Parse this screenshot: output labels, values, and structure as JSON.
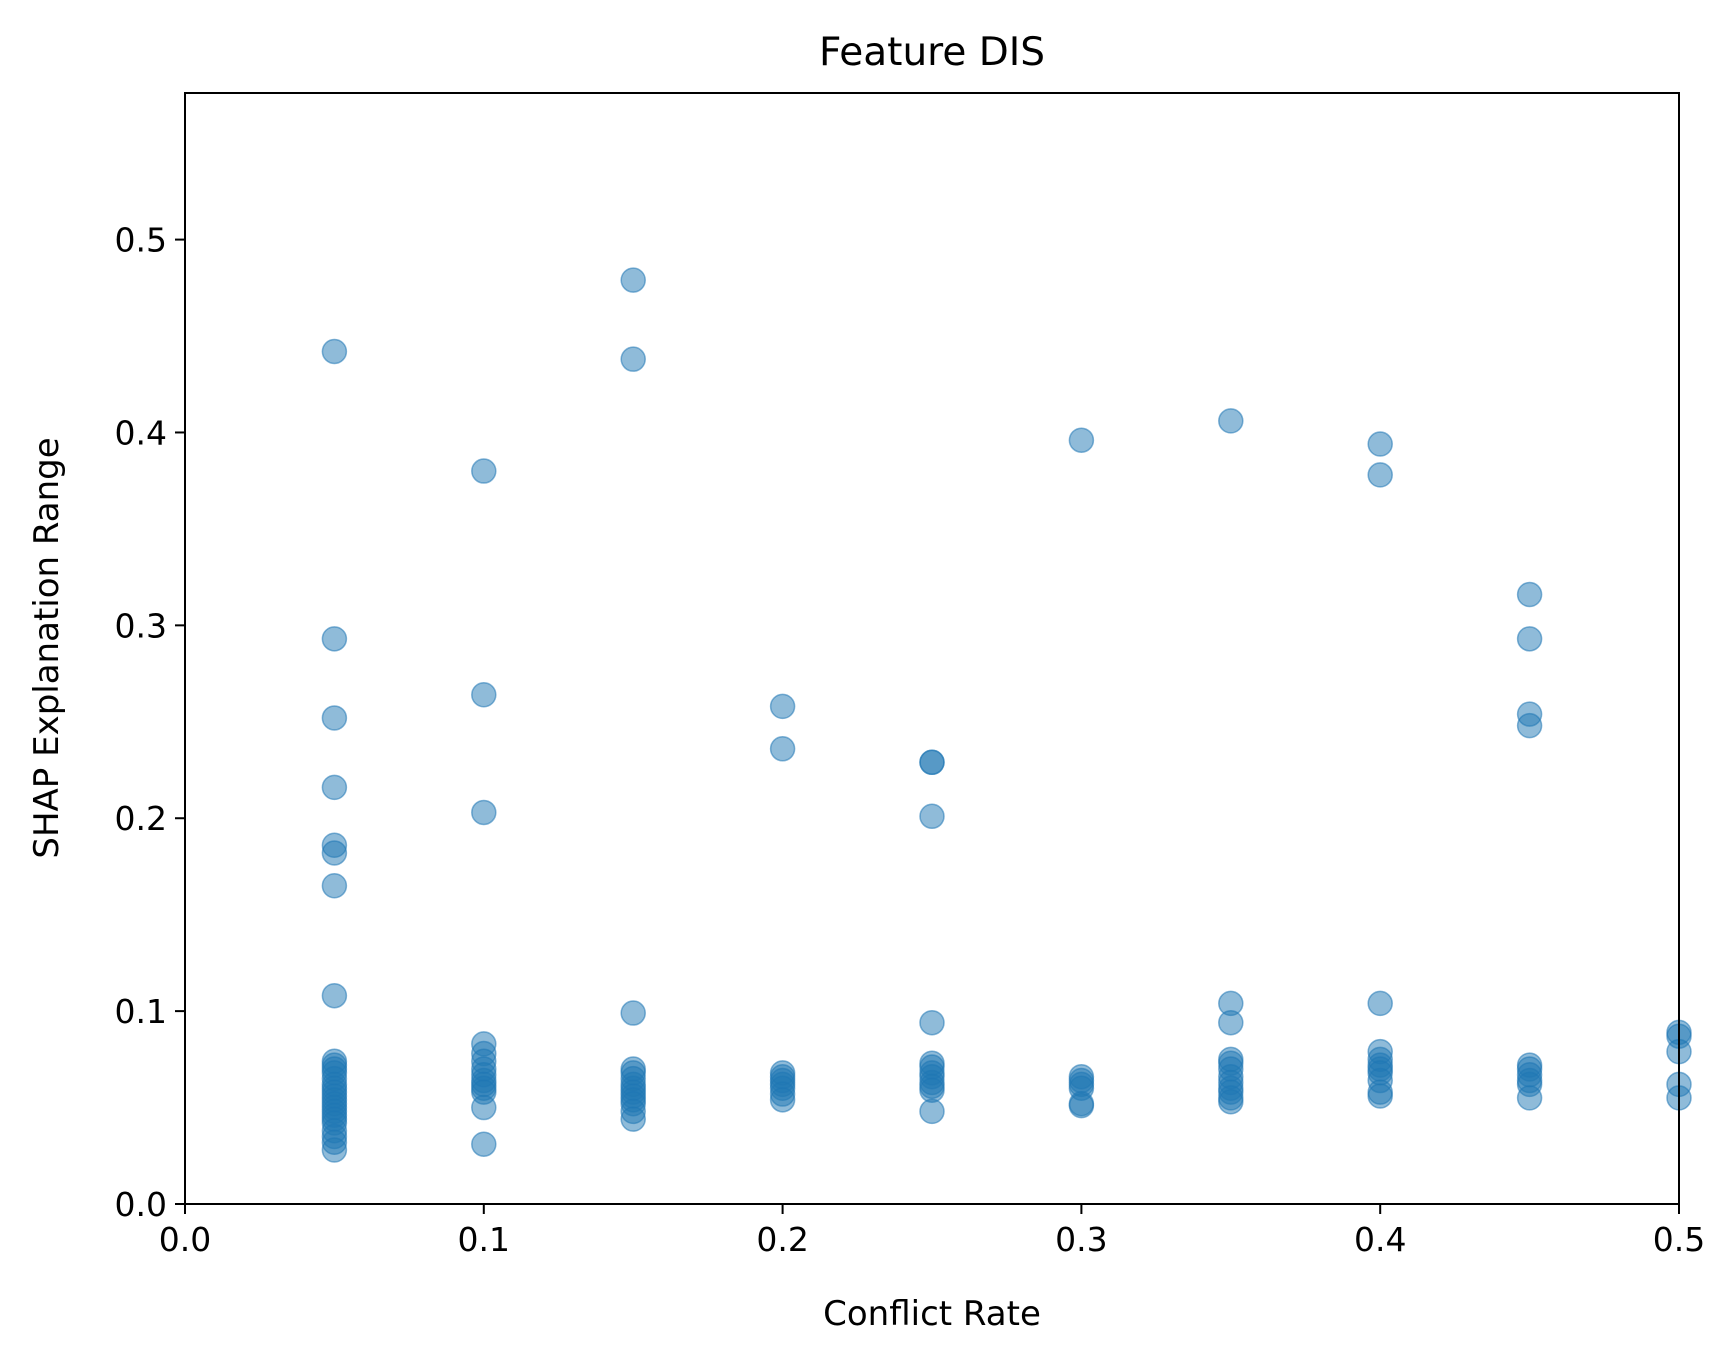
{
  "chart_data": {
    "type": "scatter",
    "title": "Feature DIS",
    "xlabel": "Conflict Rate",
    "ylabel": "SHAP Explanation Range",
    "xlim": [
      0.0,
      0.5
    ],
    "ylim": [
      0.0,
      0.576
    ],
    "xticks": [
      "0.0",
      "0.1",
      "0.2",
      "0.3",
      "0.4",
      "0.5"
    ],
    "yticks": [
      "0.0",
      "0.1",
      "0.2",
      "0.3",
      "0.4",
      "0.5"
    ],
    "grid": false,
    "marker_color": "#1f77b4",
    "marker_alpha": 0.5,
    "points": [
      [
        0.05,
        0.442
      ],
      [
        0.05,
        0.293
      ],
      [
        0.05,
        0.252
      ],
      [
        0.05,
        0.216
      ],
      [
        0.05,
        0.186
      ],
      [
        0.05,
        0.182
      ],
      [
        0.05,
        0.165
      ],
      [
        0.05,
        0.108
      ],
      [
        0.05,
        0.074
      ],
      [
        0.05,
        0.072
      ],
      [
        0.05,
        0.07
      ],
      [
        0.05,
        0.068
      ],
      [
        0.05,
        0.065
      ],
      [
        0.05,
        0.062
      ],
      [
        0.05,
        0.06
      ],
      [
        0.05,
        0.058
      ],
      [
        0.05,
        0.056
      ],
      [
        0.05,
        0.054
      ],
      [
        0.05,
        0.052
      ],
      [
        0.05,
        0.05
      ],
      [
        0.05,
        0.048
      ],
      [
        0.05,
        0.046
      ],
      [
        0.05,
        0.044
      ],
      [
        0.05,
        0.042
      ],
      [
        0.05,
        0.038
      ],
      [
        0.05,
        0.035
      ],
      [
        0.05,
        0.032
      ],
      [
        0.05,
        0.028
      ],
      [
        0.1,
        0.38
      ],
      [
        0.1,
        0.264
      ],
      [
        0.1,
        0.203
      ],
      [
        0.1,
        0.083
      ],
      [
        0.1,
        0.078
      ],
      [
        0.1,
        0.074
      ],
      [
        0.1,
        0.07
      ],
      [
        0.1,
        0.067
      ],
      [
        0.1,
        0.064
      ],
      [
        0.1,
        0.062
      ],
      [
        0.1,
        0.06
      ],
      [
        0.1,
        0.058
      ],
      [
        0.1,
        0.05
      ],
      [
        0.1,
        0.031
      ],
      [
        0.15,
        0.479
      ],
      [
        0.15,
        0.438
      ],
      [
        0.15,
        0.099
      ],
      [
        0.15,
        0.07
      ],
      [
        0.15,
        0.068
      ],
      [
        0.15,
        0.065
      ],
      [
        0.15,
        0.062
      ],
      [
        0.15,
        0.06
      ],
      [
        0.15,
        0.058
      ],
      [
        0.15,
        0.056
      ],
      [
        0.15,
        0.054
      ],
      [
        0.15,
        0.052
      ],
      [
        0.15,
        0.048
      ],
      [
        0.15,
        0.044
      ],
      [
        0.2,
        0.258
      ],
      [
        0.2,
        0.236
      ],
      [
        0.2,
        0.068
      ],
      [
        0.2,
        0.066
      ],
      [
        0.2,
        0.064
      ],
      [
        0.2,
        0.062
      ],
      [
        0.2,
        0.06
      ],
      [
        0.2,
        0.057
      ],
      [
        0.2,
        0.054
      ],
      [
        0.25,
        0.229
      ],
      [
        0.25,
        0.229
      ],
      [
        0.25,
        0.201
      ],
      [
        0.25,
        0.094
      ],
      [
        0.25,
        0.073
      ],
      [
        0.25,
        0.071
      ],
      [
        0.25,
        0.068
      ],
      [
        0.25,
        0.066
      ],
      [
        0.25,
        0.063
      ],
      [
        0.25,
        0.061
      ],
      [
        0.25,
        0.059
      ],
      [
        0.25,
        0.048
      ],
      [
        0.3,
        0.396
      ],
      [
        0.3,
        0.066
      ],
      [
        0.3,
        0.064
      ],
      [
        0.3,
        0.062
      ],
      [
        0.3,
        0.06
      ],
      [
        0.3,
        0.052
      ],
      [
        0.3,
        0.051
      ],
      [
        0.35,
        0.406
      ],
      [
        0.35,
        0.104
      ],
      [
        0.35,
        0.094
      ],
      [
        0.35,
        0.075
      ],
      [
        0.35,
        0.073
      ],
      [
        0.35,
        0.07
      ],
      [
        0.35,
        0.066
      ],
      [
        0.35,
        0.063
      ],
      [
        0.35,
        0.06
      ],
      [
        0.35,
        0.058
      ],
      [
        0.35,
        0.055
      ],
      [
        0.35,
        0.053
      ],
      [
        0.4,
        0.394
      ],
      [
        0.4,
        0.378
      ],
      [
        0.4,
        0.104
      ],
      [
        0.4,
        0.079
      ],
      [
        0.4,
        0.075
      ],
      [
        0.4,
        0.072
      ],
      [
        0.4,
        0.07
      ],
      [
        0.4,
        0.068
      ],
      [
        0.4,
        0.064
      ],
      [
        0.4,
        0.058
      ],
      [
        0.4,
        0.056
      ],
      [
        0.45,
        0.316
      ],
      [
        0.45,
        0.293
      ],
      [
        0.45,
        0.254
      ],
      [
        0.45,
        0.248
      ],
      [
        0.45,
        0.072
      ],
      [
        0.45,
        0.07
      ],
      [
        0.45,
        0.067
      ],
      [
        0.45,
        0.064
      ],
      [
        0.45,
        0.062
      ],
      [
        0.45,
        0.055
      ],
      [
        0.5,
        0.089
      ],
      [
        0.5,
        0.087
      ],
      [
        0.5,
        0.079
      ],
      [
        0.5,
        0.062
      ],
      [
        0.5,
        0.055
      ]
    ]
  }
}
